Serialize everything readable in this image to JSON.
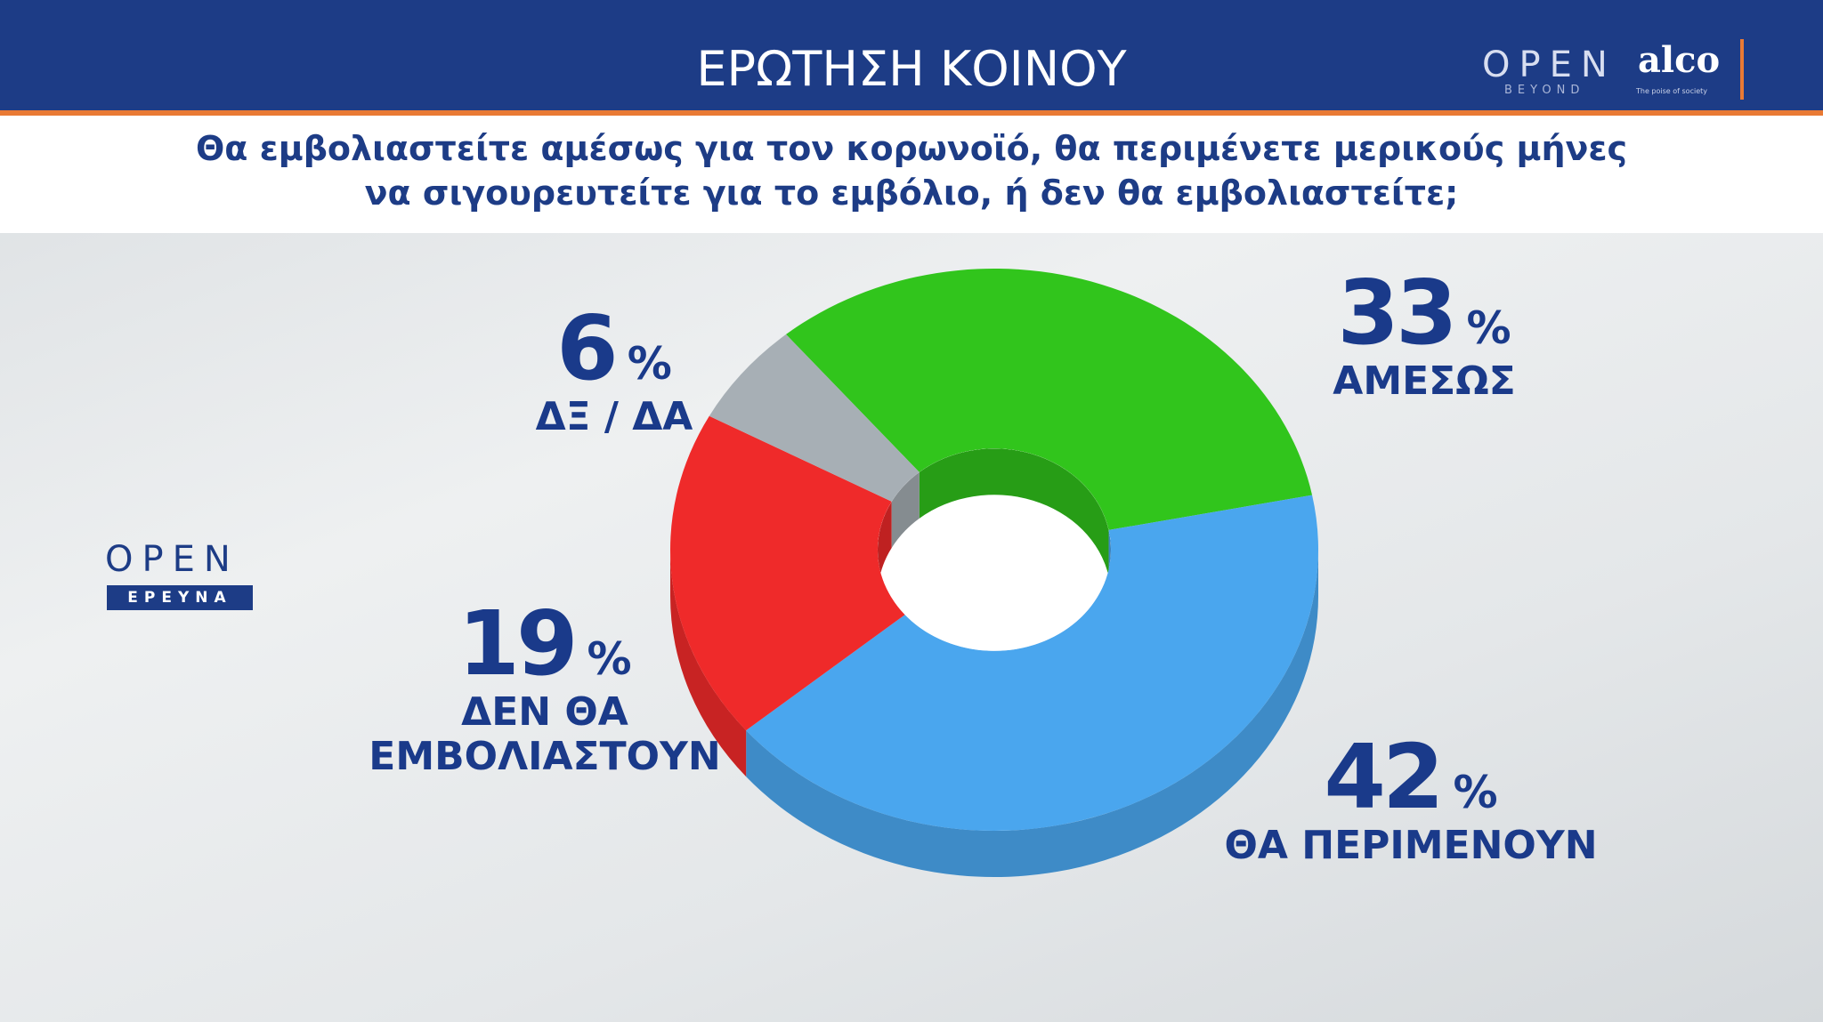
{
  "header": {
    "title": "ΕΡΩΤΗΣΗ ΚΟΙΝΟΥ",
    "question": [
      "Θα εμβολιαστείτε αμέσως για τον κορωνοϊό, θα περιμένετε μερικούς μήνες",
      "να σιγουρευτείτε για το εμβόλιο, ή δεν θα εμβολιαστείτε;"
    ],
    "logo_open": "OPEN",
    "logo_beyond": "BEYOND",
    "logo_alco": "alco",
    "logo_alco_sub": "The poise of society"
  },
  "side_logo": {
    "open": "OPEN",
    "research": "ΕΡΕΥΝΑ"
  },
  "chart_data": {
    "type": "pie",
    "donut": true,
    "unit": "%",
    "categories": [
      "ΑΜΕΣΩΣ",
      "ΘΑ ΠΕΡΙΜΕΝΟΥΝ",
      "ΔΕΝ ΘΑ ΕΜΒΟΛΙΑΣΤΟΥΝ",
      "ΔΞ / ΔΑ"
    ],
    "values": [
      33,
      42,
      19,
      6
    ],
    "colors": [
      "#31c51c",
      "#4aa6ee",
      "#ef2a2a",
      "#a7afb5"
    ]
  }
}
